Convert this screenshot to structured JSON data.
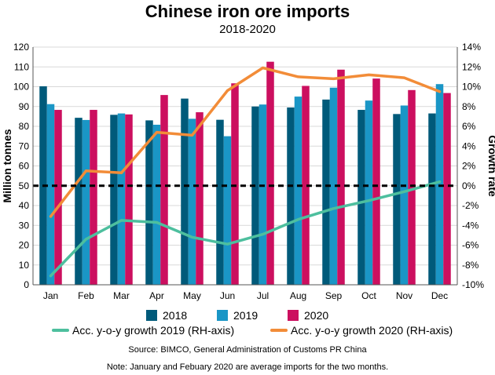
{
  "title": "Chinese iron ore imports",
  "subtitle": "2018-2020",
  "source": "Source: BIMCO, General Administration of Customs PR China",
  "note": "Note: January and Febuary 2020 are average imports for the two months.",
  "chart_data": {
    "type": "bar",
    "categories": [
      "Jan",
      "Feb",
      "Mar",
      "Apr",
      "May",
      "Jun",
      "Jul",
      "Aug",
      "Sep",
      "Oct",
      "Nov",
      "Dec"
    ],
    "ylabel_left": "Million tonnes",
    "ylabel_right": "Growth rate",
    "ylim_left": [
      0,
      120
    ],
    "ylim_right": [
      -10,
      14
    ],
    "yticks_left": [
      "0",
      "10",
      "20",
      "30",
      "40",
      "50",
      "60",
      "70",
      "80",
      "90",
      "100",
      "110",
      "120"
    ],
    "yticks_right": [
      "-10%",
      "-8%",
      "-6%",
      "-4%",
      "-2%",
      "0%",
      "2%",
      "4%",
      "6%",
      "8%",
      "10%",
      "12%",
      "14%"
    ],
    "reference_line": {
      "value": 50,
      "style": "dashed"
    },
    "legend_position": "bottom",
    "bar_series": [
      {
        "name": "2018",
        "color": "#005a7a",
        "values": [
          100.2,
          84.3,
          85.8,
          83.0,
          94.0,
          83.3,
          90.0,
          89.5,
          93.5,
          88.3,
          86.2,
          86.5
        ]
      },
      {
        "name": "2019",
        "color": "#1a96c6",
        "values": [
          91.2,
          83.2,
          86.5,
          80.8,
          83.8,
          75.0,
          91.0,
          95.0,
          99.5,
          93.0,
          90.5,
          101.3
        ]
      },
      {
        "name": "2020",
        "color": "#cc0f5f",
        "values": [
          88.3,
          88.3,
          86.0,
          95.8,
          87.1,
          101.7,
          112.6,
          100.4,
          108.6,
          104.1,
          98.3,
          96.8
        ]
      }
    ],
    "line_series": [
      {
        "name": "Acc. y-o-y growth 2019 (RH-axis)",
        "color": "#4dbf9e",
        "axis": "right",
        "values": [
          -9.1,
          -5.4,
          -3.5,
          -3.7,
          -5.2,
          -5.9,
          -4.9,
          -3.4,
          -2.3,
          -1.5,
          -0.6,
          0.4
        ]
      },
      {
        "name": "Acc. y-o-y growth 2020 (RH-axis)",
        "color": "#f28c38",
        "axis": "right",
        "values": [
          -3.1,
          1.5,
          1.3,
          5.4,
          5.1,
          9.6,
          11.9,
          11.0,
          10.8,
          11.2,
          10.9,
          9.5
        ]
      }
    ]
  }
}
